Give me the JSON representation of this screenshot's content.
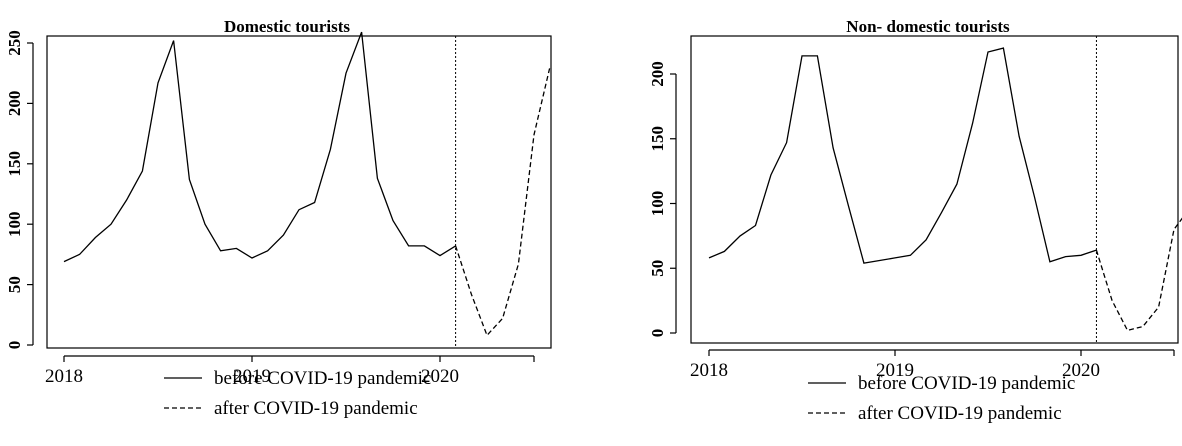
{
  "chart_data": [
    {
      "type": "line",
      "title": "Domestic tourists",
      "xlabel": "",
      "ylabel": "",
      "ylim": [
        0,
        250
      ],
      "xlim": [
        2018.0,
        2020.6
      ],
      "yticks": [
        0,
        50,
        100,
        150,
        200,
        250
      ],
      "xticks": [
        {
          "value": 2018,
          "label": "2018"
        },
        {
          "value": 2019,
          "label": "2019"
        },
        {
          "value": 2020,
          "label": "2020"
        },
        {
          "value": 2020.5,
          "label": ""
        }
      ],
      "vline_x": 2020.083,
      "legend_position": "bottom",
      "series": [
        {
          "name": "before COVID-19 pandemic",
          "style": "solid",
          "x": [
            2018.0,
            2018.083,
            2018.167,
            2018.25,
            2018.333,
            2018.417,
            2018.5,
            2018.583,
            2018.667,
            2018.75,
            2018.833,
            2018.917,
            2019.0,
            2019.083,
            2019.167,
            2019.25,
            2019.333,
            2019.417,
            2019.5,
            2019.583,
            2019.667,
            2019.75,
            2019.833,
            2019.917,
            2020.0,
            2020.083
          ],
          "y": [
            69,
            75,
            89,
            100,
            120,
            144,
            217,
            252,
            137,
            100,
            78,
            80,
            72,
            78,
            91,
            112,
            118,
            162,
            225,
            259,
            138,
            103,
            82,
            82,
            74,
            82
          ]
        },
        {
          "name": "after COVID-19 pandemic",
          "style": "dashed",
          "x": [
            2020.083,
            2020.167,
            2020.25,
            2020.333,
            2020.417,
            2020.5,
            2020.583
          ],
          "y": [
            82,
            42,
            8,
            22,
            67,
            174,
            229
          ]
        }
      ]
    },
    {
      "type": "line",
      "title": "Non- domestic tourists",
      "xlabel": "",
      "ylabel": "",
      "ylim": [
        0,
        225
      ],
      "xlim": [
        2018.0,
        2020.6
      ],
      "yticks": [
        0,
        50,
        100,
        150,
        200
      ],
      "xticks": [
        {
          "value": 2018,
          "label": "2018"
        },
        {
          "value": 2019,
          "label": "2019"
        },
        {
          "value": 2020,
          "label": "2020"
        },
        {
          "value": 2020.5,
          "label": ""
        }
      ],
      "vline_x": 2020.083,
      "legend_position": "bottom",
      "series": [
        {
          "name": "before COVID-19 pandemic",
          "style": "solid",
          "x": [
            2018.0,
            2018.083,
            2018.167,
            2018.25,
            2018.333,
            2018.417,
            2018.5,
            2018.583,
            2018.667,
            2018.75,
            2018.833,
            2018.917,
            2019.0,
            2019.083,
            2019.167,
            2019.25,
            2019.333,
            2019.417,
            2019.5,
            2019.583,
            2019.667,
            2019.75,
            2019.833,
            2019.917,
            2020.0,
            2020.083
          ],
          "y": [
            58,
            63,
            75,
            83,
            122,
            147,
            214,
            214,
            143,
            98,
            54,
            56,
            58,
            60,
            72,
            93,
            115,
            162,
            217,
            220,
            152,
            105,
            55,
            59,
            60,
            64
          ]
        },
        {
          "name": "after COVID-19 pandemic",
          "style": "dashed",
          "x": [
            2020.083,
            2020.167,
            2020.25,
            2020.333,
            2020.417,
            2020.5,
            2020.583
          ],
          "y": [
            64,
            25,
            2,
            5,
            20,
            80,
            96
          ]
        }
      ]
    }
  ]
}
